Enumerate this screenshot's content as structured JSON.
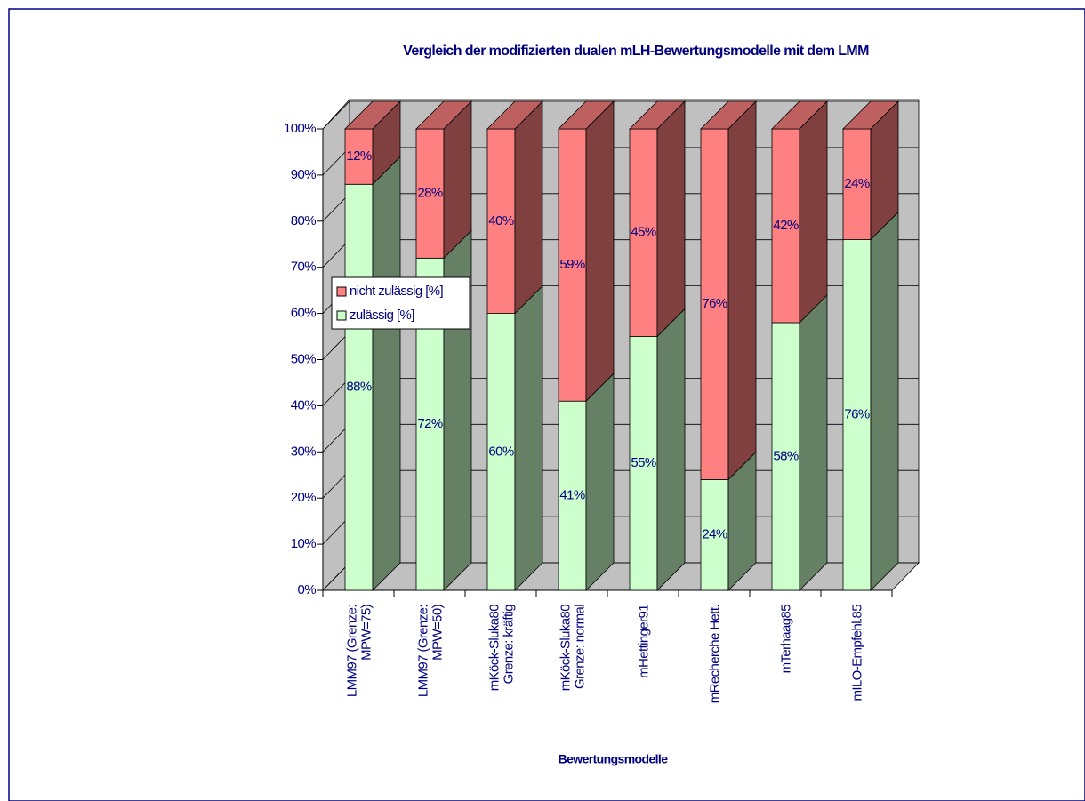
{
  "chart_data": {
    "type": "bar3d_stacked",
    "title": "Vergleich der modifizierten dualen  mLH-Bewertungsmodelle mit dem LMM",
    "x_label": "Bewertungsmodelle",
    "categories": [
      "LMM97 (Grenze:\nMPW=75)",
      "LMM97 (Grenze:\nMPW=50)",
      "mKöck-Sluka80\nGrenze: kräftig",
      "mKöck-Sluka80\nGrenze: normal",
      "mHettinger91",
      "mRecherche Hett.",
      "mTerhaag85",
      "mILO-Empfehl.85"
    ],
    "series": [
      {
        "name": "zulässig [%]",
        "color": "#ccffcc",
        "values": [
          88,
          72,
          60,
          41,
          55,
          24,
          58,
          76
        ],
        "value_labels": [
          "88%",
          "72%",
          "60%",
          "41%",
          "55%",
          "24%",
          "58%",
          "76%"
        ]
      },
      {
        "name": "nicht zulässig [%]",
        "color": "#ff8080",
        "values": [
          12,
          28,
          40,
          59,
          45,
          76,
          42,
          24
        ],
        "value_labels": [
          "12%",
          "28%",
          "40%",
          "59%",
          "45%",
          "76%",
          "42%",
          "24%"
        ]
      }
    ],
    "ylim": [
      0,
      100
    ],
    "yticks": [
      {
        "value": 0,
        "label": "0%"
      },
      {
        "value": 10,
        "label": "10%"
      },
      {
        "value": 20,
        "label": "20%"
      },
      {
        "value": 30,
        "label": "30%"
      },
      {
        "value": 40,
        "label": "40%"
      },
      {
        "value": 50,
        "label": "50%"
      },
      {
        "value": 60,
        "label": "60%"
      },
      {
        "value": 70,
        "label": "70%"
      },
      {
        "value": 80,
        "label": "80%"
      },
      {
        "value": 90,
        "label": "90%"
      },
      {
        "value": 100,
        "label": "100%"
      }
    ],
    "grid": true,
    "legend": "left"
  }
}
